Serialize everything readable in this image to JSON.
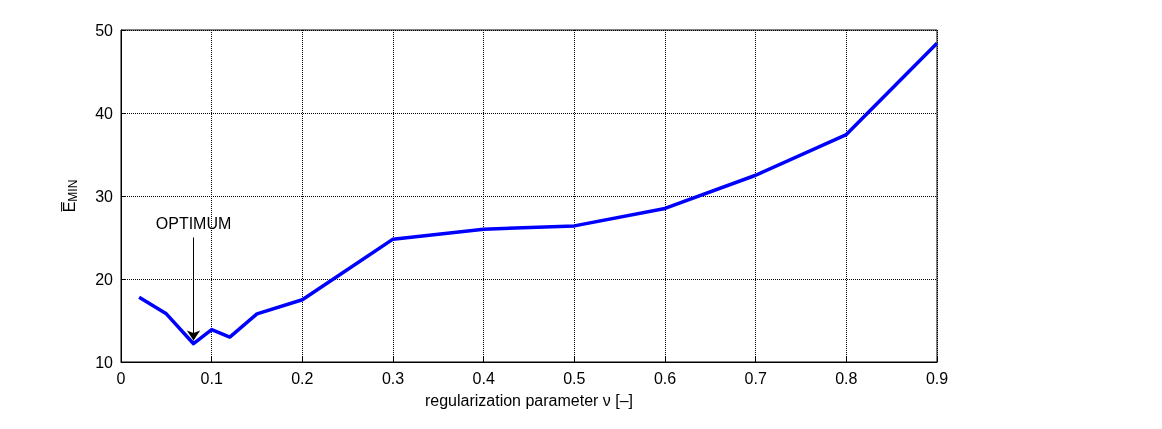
{
  "chart_data": {
    "type": "line",
    "xlabel": "regularization parameter ν [–]",
    "ylabel": "E̅$_{MIN}$",
    "x": [
      0.02,
      0.05,
      0.08,
      0.1,
      0.12,
      0.15,
      0.2,
      0.3,
      0.4,
      0.5,
      0.6,
      0.7,
      0.8,
      0.9
    ],
    "series": [
      {
        "color": "#0000ff",
        "values": [
          17.8,
          15.8,
          12.2,
          13.9,
          13.0,
          15.8,
          17.5,
          24.8,
          26.0,
          26.4,
          28.5,
          32.5,
          37.4,
          48.4
        ]
      }
    ],
    "xlim": [
      0,
      0.9
    ],
    "xticks": [
      0,
      0.1,
      0.2,
      0.3,
      0.4,
      0.5,
      0.6,
      0.7,
      0.8,
      0.9
    ],
    "ylim": [
      10,
      50
    ],
    "yticks": [
      10,
      20,
      30,
      40,
      50
    ],
    "grid": true,
    "marker": "none",
    "line_style": "solid",
    "annotations": [
      {
        "text": "OPTIMUM",
        "x": 0.08,
        "y": 12.2
      }
    ]
  }
}
